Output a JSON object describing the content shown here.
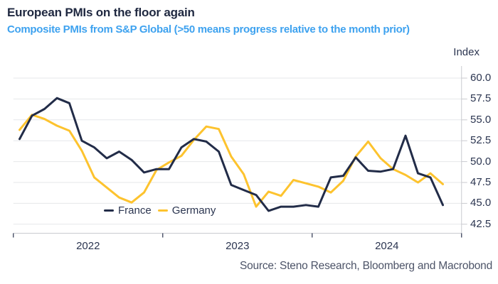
{
  "header": {
    "title": "European PMIs on the floor again",
    "subtitle": "Composite PMIs from S&P Global (>50 means progress relative to the month prior)"
  },
  "colors": {
    "title-navy": "#1f2840",
    "subtitle-blue": "#3ea2ef",
    "axis-text": "#2b3550",
    "grid-line": "#e6e7ea",
    "axis-line": "#c9cacf",
    "tick-mark": "#39415a",
    "source-text": "#4d5468",
    "background": "#ffffff"
  },
  "chart_data": {
    "type": "line",
    "title": "European PMIs on the floor again",
    "subtitle": "Composite PMIs from S&P Global (>50 means progress relative to the month prior)",
    "unit_label": "Index",
    "ylim": [
      42.5,
      60.0
    ],
    "yticks": [
      60.0,
      57.5,
      55.0,
      52.5,
      50.0,
      47.5,
      45.0,
      42.5
    ],
    "ytick_side": "right",
    "grid": "horizontal",
    "legend_position": "bottom-left-of-center",
    "xticks_years": [
      "2022",
      "2023",
      "2024"
    ],
    "x": [
      "2022-01",
      "2022-02",
      "2022-03",
      "2022-04",
      "2022-05",
      "2022-06",
      "2022-07",
      "2022-08",
      "2022-09",
      "2022-10",
      "2022-11",
      "2022-12",
      "2023-01",
      "2023-02",
      "2023-03",
      "2023-04",
      "2023-05",
      "2023-06",
      "2023-07",
      "2023-08",
      "2023-09",
      "2023-10",
      "2023-11",
      "2023-12",
      "2024-01",
      "2024-02",
      "2024-03",
      "2024-04",
      "2024-05",
      "2024-06",
      "2024-07",
      "2024-08",
      "2024-09",
      "2024-10",
      "2024-11"
    ],
    "series": [
      {
        "name": "France",
        "color": "#222c48",
        "values": [
          52.7,
          55.5,
          56.3,
          57.6,
          57.0,
          52.5,
          51.7,
          50.4,
          51.2,
          50.2,
          48.7,
          49.1,
          49.1,
          51.7,
          52.7,
          52.4,
          51.2,
          47.2,
          46.6,
          46.0,
          44.1,
          44.6,
          44.6,
          44.8,
          44.6,
          48.1,
          48.3,
          50.5,
          48.9,
          48.8,
          49.1,
          53.1,
          48.6,
          48.1,
          44.8
        ]
      },
      {
        "name": "Germany",
        "color": "#fdc32e",
        "values": [
          53.8,
          55.6,
          55.1,
          54.3,
          53.7,
          51.3,
          48.1,
          46.9,
          45.7,
          45.1,
          46.3,
          49.0,
          49.9,
          50.7,
          52.6,
          54.2,
          53.9,
          50.6,
          48.5,
          44.6,
          46.4,
          45.9,
          47.8,
          47.4,
          47.0,
          46.3,
          47.7,
          50.6,
          52.4,
          50.4,
          49.1,
          48.4,
          47.5,
          48.6,
          47.3
        ]
      }
    ],
    "source": "Source: Steno Research, Bloomberg and Macrobond"
  }
}
